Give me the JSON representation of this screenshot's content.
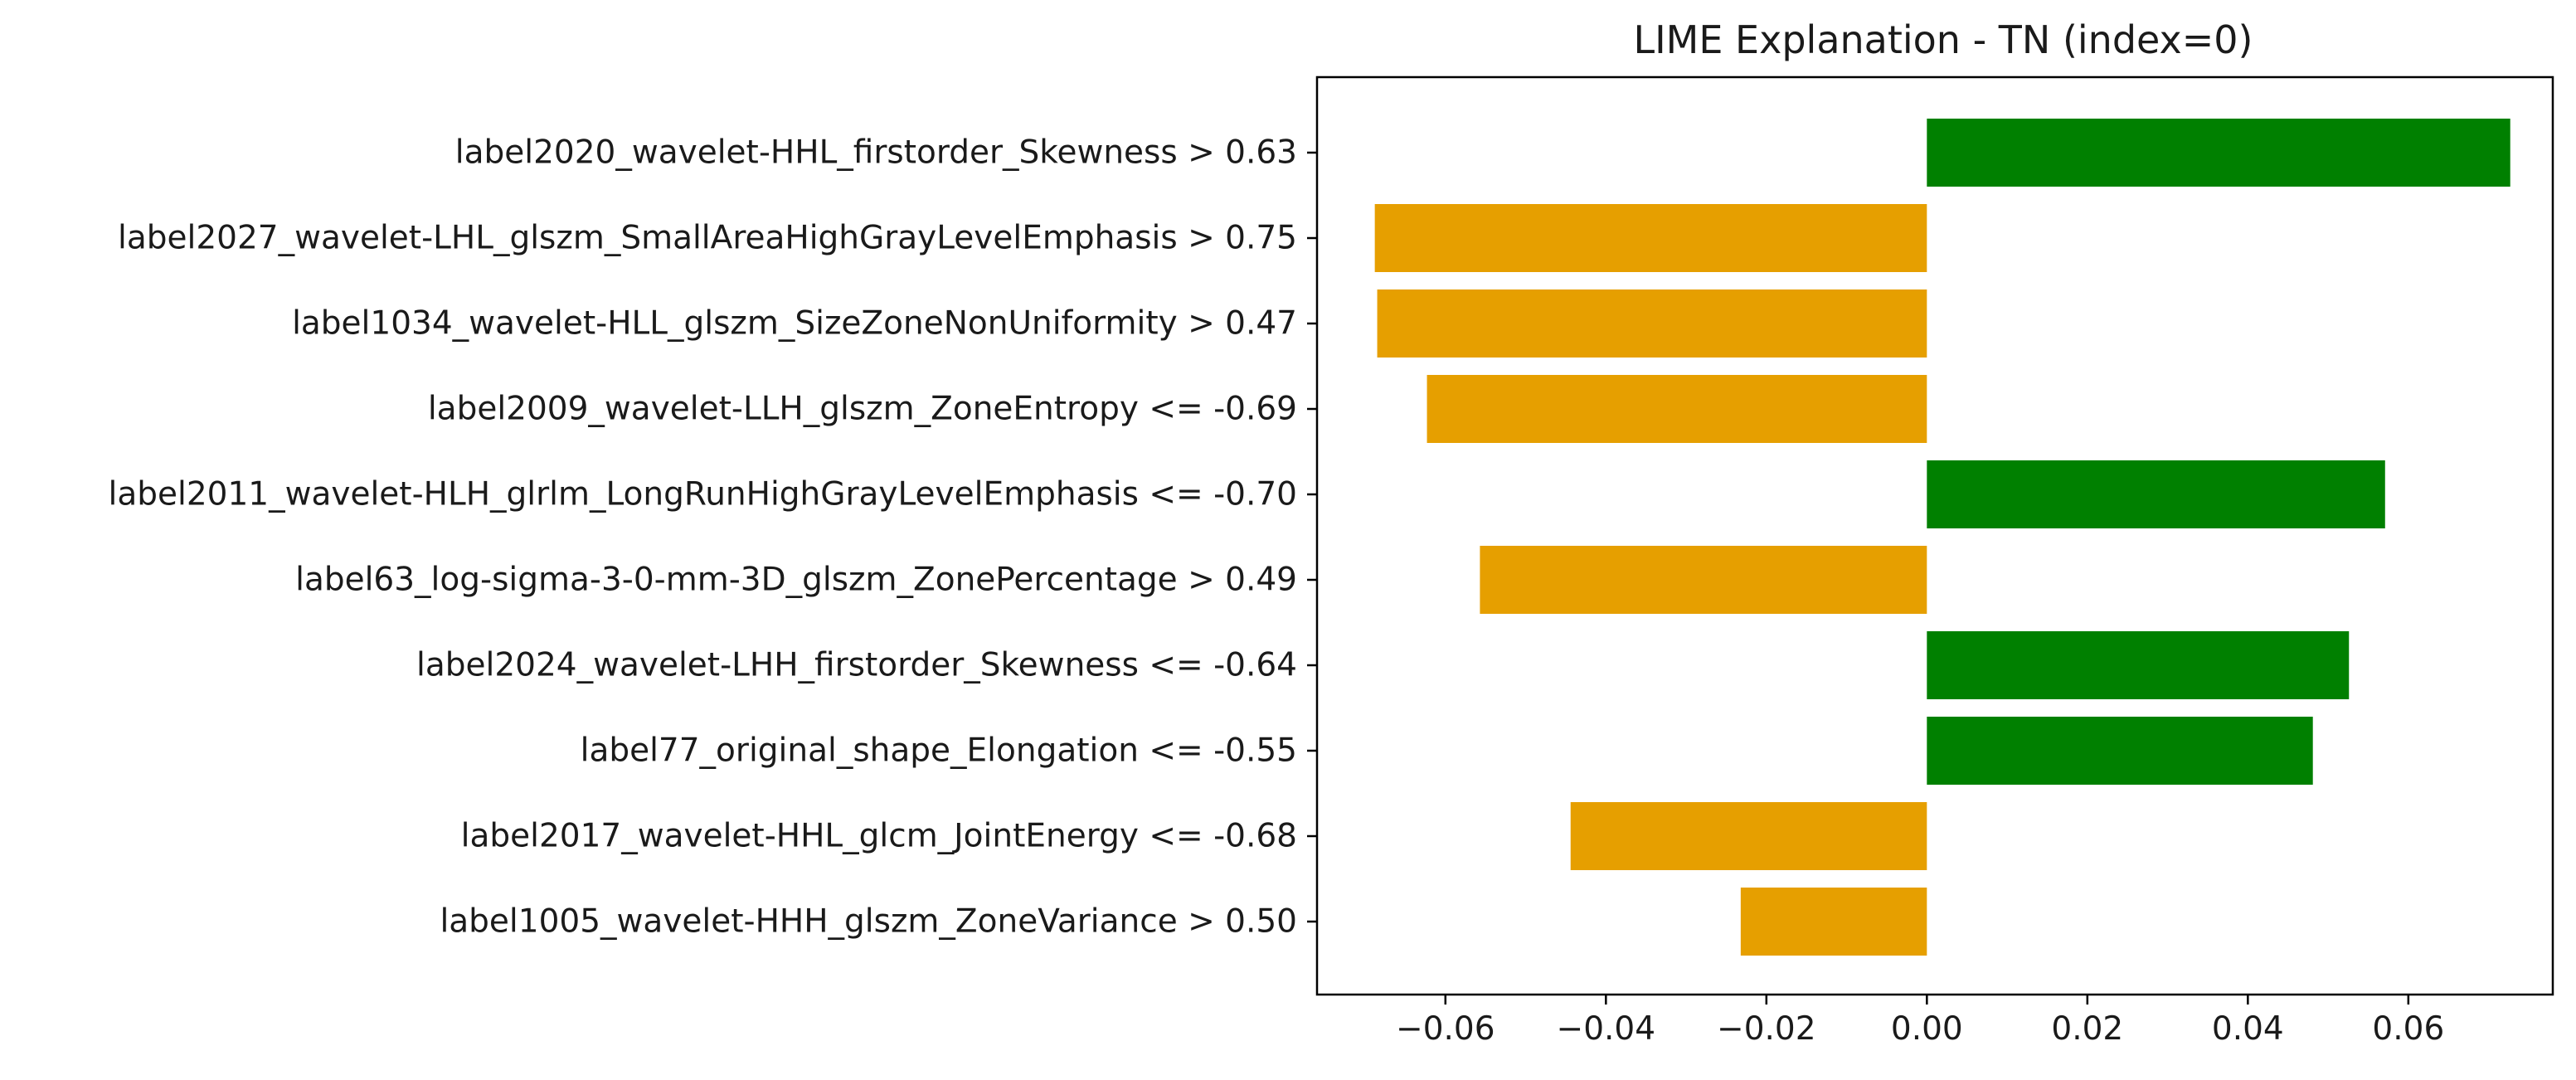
{
  "chart_data": {
    "type": "bar",
    "orientation": "horizontal",
    "title": "LIME Explanation - TN (index=0)",
    "xlabel": "",
    "ylabel": "",
    "xlim": [
      -0.076,
      0.078
    ],
    "grid": false,
    "legend": "none",
    "colors": {
      "positive": "#008000",
      "negative": "#E69F00"
    },
    "x_ticks": [
      {
        "value": -0.06,
        "label": "−0.06"
      },
      {
        "value": -0.04,
        "label": "−0.04"
      },
      {
        "value": -0.02,
        "label": "−0.02"
      },
      {
        "value": 0.0,
        "label": "0.00"
      },
      {
        "value": 0.02,
        "label": "0.02"
      },
      {
        "value": 0.04,
        "label": "0.04"
      },
      {
        "value": 0.06,
        "label": "0.06"
      }
    ],
    "categories": [
      "label2020_wavelet-HHL_firstorder_Skewness > 0.63",
      "label2027_wavelet-LHL_glszm_SmallAreaHighGrayLevelEmphasis > 0.75",
      "label1034_wavelet-HLL_glszm_SizeZoneNonUniformity > 0.47",
      "label2009_wavelet-LLH_glszm_ZoneEntropy <= -0.69",
      "label2011_wavelet-HLH_glrlm_LongRunHighGrayLevelEmphasis <= -0.70",
      "label63_log-sigma-3-0-mm-3D_glszm_ZonePercentage > 0.49",
      "label2024_wavelet-LHH_firstorder_Skewness <= -0.64",
      "label77_original_shape_Elongation <= -0.55",
      "label2017_wavelet-HHL_glcm_JointEnergy <= -0.68",
      "label1005_wavelet-HHH_glszm_ZoneVariance > 0.50"
    ],
    "values": [
      0.0727,
      -0.0688,
      -0.0685,
      -0.0623,
      0.0571,
      -0.0557,
      0.0526,
      0.0481,
      -0.0444,
      -0.0232
    ]
  }
}
